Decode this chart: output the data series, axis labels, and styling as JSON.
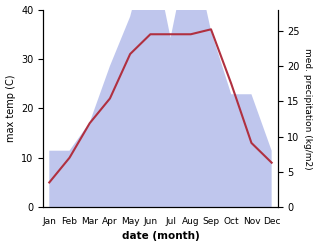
{
  "months": [
    "Jan",
    "Feb",
    "Mar",
    "Apr",
    "May",
    "Jun",
    "Jul",
    "Aug",
    "Sep",
    "Oct",
    "Nov",
    "Dec"
  ],
  "temp": [
    5,
    10,
    17,
    22,
    31,
    35,
    35,
    35,
    36,
    25,
    13,
    9
  ],
  "precip": [
    8,
    8,
    12,
    20,
    27,
    38,
    24,
    38,
    25,
    16,
    16,
    8
  ],
  "temp_color": "#b03040",
  "precip_fill_color": "#aab4e8",
  "temp_ylim": [
    0,
    40
  ],
  "temp_yticks": [
    0,
    10,
    20,
    30,
    40
  ],
  "precip_ylim": [
    0,
    28
  ],
  "precip_yticks": [
    0,
    5,
    10,
    15,
    20,
    25
  ],
  "ylabel_left": "max temp (C)",
  "ylabel_right": "med. precipitation (kg/m2)",
  "xlabel": "date (month)",
  "bg_color": "#ffffff",
  "line_width": 1.5,
  "fill_alpha": 0.75
}
